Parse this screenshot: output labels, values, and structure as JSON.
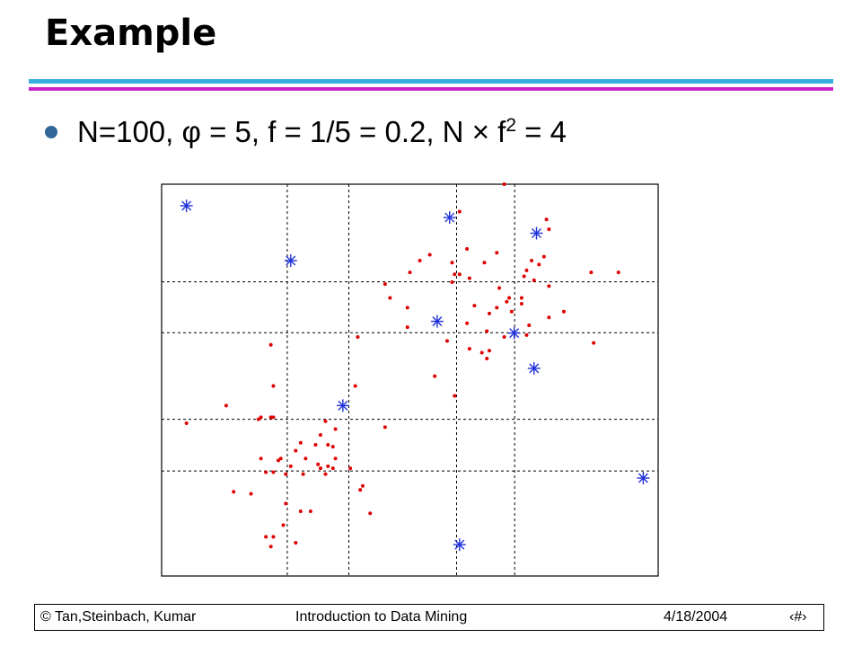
{
  "slide": {
    "title": "Example",
    "bullet": {
      "prefix": "N=100, ",
      "phi_symbol": "φ",
      "mid": " = 5, f = 1/5 = 0.2, N ",
      "times_symbol": "×",
      "f_part": " f",
      "superscript": "2",
      "suffix": " = 4"
    },
    "colors": {
      "rule_top": "#3aaede",
      "rule_bottom": "#cc22cc",
      "bullet": "#336699"
    }
  },
  "footer": {
    "left": "© Tan,Steinbach, Kumar",
    "center": "Introduction to Data Mining",
    "date": "4/18/2004",
    "page": "‹#›"
  },
  "chart_data": {
    "type": "scatter",
    "title": "",
    "xlabel": "",
    "ylabel": "",
    "xlim": [
      0,
      10
    ],
    "ylim": [
      0,
      10
    ],
    "grid": "dashed, uneven divisions",
    "grid_x": [
      2.53,
      3.77,
      5.94,
      7.11
    ],
    "grid_y": [
      2.68,
      4.0,
      6.21,
      7.51
    ],
    "series": [
      {
        "marker": "dot",
        "color": "#e00000",
        "points": [
          [
            6.9,
            10.0
          ],
          [
            7.75,
            9.1
          ],
          [
            7.8,
            8.85
          ],
          [
            6.15,
            8.35
          ],
          [
            6.75,
            8.25
          ],
          [
            5.4,
            8.2
          ],
          [
            5.2,
            8.05
          ],
          [
            7.7,
            8.15
          ],
          [
            7.45,
            8.05
          ],
          [
            5.85,
            8.0
          ],
          [
            6.5,
            8.0
          ],
          [
            7.6,
            7.95
          ],
          [
            7.35,
            7.8
          ],
          [
            8.65,
            7.75
          ],
          [
            9.2,
            7.75
          ],
          [
            5.0,
            7.75
          ],
          [
            5.9,
            7.7
          ],
          [
            6.0,
            7.7
          ],
          [
            7.3,
            7.65
          ],
          [
            7.5,
            7.55
          ],
          [
            4.5,
            7.45
          ],
          [
            5.85,
            7.5
          ],
          [
            7.8,
            7.4
          ],
          [
            6.8,
            7.35
          ],
          [
            6.95,
            7.0
          ],
          [
            7.0,
            7.1
          ],
          [
            7.25,
            7.1
          ],
          [
            7.25,
            6.95
          ],
          [
            4.95,
            6.85
          ],
          [
            6.3,
            6.9
          ],
          [
            6.75,
            6.85
          ],
          [
            7.05,
            6.75
          ],
          [
            6.6,
            6.7
          ],
          [
            8.1,
            6.75
          ],
          [
            7.8,
            6.6
          ],
          [
            6.15,
            6.45
          ],
          [
            7.4,
            6.4
          ],
          [
            4.95,
            6.35
          ],
          [
            6.55,
            6.25
          ],
          [
            7.35,
            6.15
          ],
          [
            6.9,
            6.1
          ],
          [
            5.75,
            6.0
          ],
          [
            8.7,
            5.95
          ],
          [
            6.2,
            5.8
          ],
          [
            6.6,
            5.75
          ],
          [
            6.45,
            5.7
          ],
          [
            6.55,
            5.55
          ],
          [
            5.9,
            4.6
          ],
          [
            2.2,
            5.9
          ],
          [
            2.25,
            4.85
          ],
          [
            3.9,
            4.85
          ],
          [
            1.3,
            4.35
          ],
          [
            2.0,
            4.05
          ],
          [
            2.2,
            4.05
          ],
          [
            2.25,
            4.05
          ],
          [
            1.95,
            4.0
          ],
          [
            3.3,
            3.95
          ],
          [
            0.5,
            3.9
          ],
          [
            4.5,
            3.8
          ],
          [
            3.5,
            3.75
          ],
          [
            3.2,
            3.6
          ],
          [
            3.1,
            3.35
          ],
          [
            3.35,
            3.35
          ],
          [
            2.8,
            3.4
          ],
          [
            3.45,
            3.3
          ],
          [
            2.7,
            3.2
          ],
          [
            2.0,
            3.0
          ],
          [
            2.4,
            3.0
          ],
          [
            2.35,
            2.95
          ],
          [
            2.9,
            3.0
          ],
          [
            3.5,
            3.0
          ],
          [
            3.15,
            2.85
          ],
          [
            3.35,
            2.8
          ],
          [
            2.6,
            2.8
          ],
          [
            3.2,
            2.75
          ],
          [
            3.8,
            2.75
          ],
          [
            3.45,
            2.75
          ],
          [
            2.1,
            2.65
          ],
          [
            2.25,
            2.65
          ],
          [
            2.85,
            2.6
          ],
          [
            2.5,
            2.6
          ],
          [
            3.3,
            2.6
          ],
          [
            4.05,
            2.3
          ],
          [
            4.0,
            2.2
          ],
          [
            1.45,
            2.15
          ],
          [
            1.8,
            2.1
          ],
          [
            2.5,
            1.85
          ],
          [
            2.8,
            1.65
          ],
          [
            4.2,
            1.6
          ],
          [
            2.45,
            1.3
          ],
          [
            2.1,
            1.0
          ],
          [
            2.25,
            1.0
          ],
          [
            2.7,
            0.85
          ],
          [
            2.2,
            0.75
          ],
          [
            3.0,
            1.65
          ],
          [
            6.0,
            9.3
          ],
          [
            6.2,
            7.6
          ],
          [
            4.6,
            7.1
          ],
          [
            3.95,
            6.1
          ],
          [
            5.5,
            5.1
          ]
        ]
      },
      {
        "marker": "asterisk",
        "color": "#2233dd",
        "points": [
          [
            0.5,
            9.45
          ],
          [
            5.8,
            9.15
          ],
          [
            7.55,
            8.75
          ],
          [
            2.6,
            8.05
          ],
          [
            5.55,
            6.5
          ],
          [
            7.1,
            6.2
          ],
          [
            7.5,
            5.3
          ],
          [
            3.65,
            4.35
          ],
          [
            9.7,
            2.5
          ],
          [
            6.0,
            0.8
          ]
        ]
      }
    ]
  }
}
